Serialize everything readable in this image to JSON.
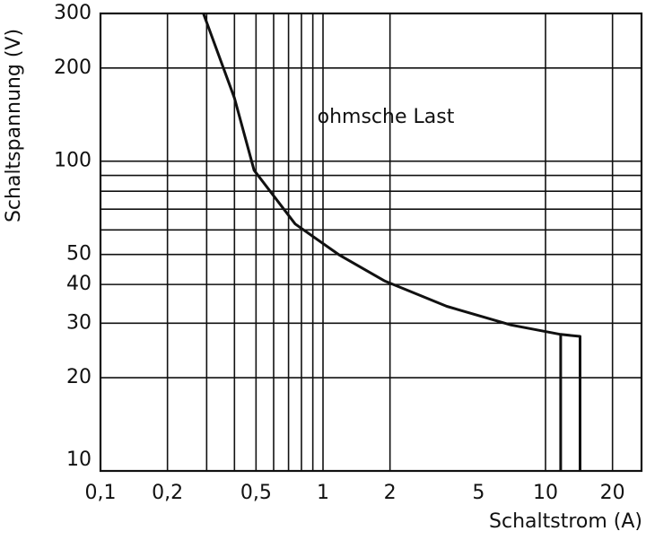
{
  "chart_data": {
    "type": "line",
    "x_label": "Schaltstrom (A)",
    "y_label": "Schaltspannung (V)",
    "annotation": "ohmsche Last",
    "xscale": "log",
    "yscale": "log",
    "xlim": [
      0.1,
      27
    ],
    "ylim": [
      10,
      300
    ],
    "xticks": [
      {
        "value": 0.1,
        "label": "0,1"
      },
      {
        "value": 0.2,
        "label": "0,2"
      },
      {
        "value": 0.5,
        "label": "0,5"
      },
      1,
      2,
      5,
      10,
      20
    ],
    "yticks": [
      10,
      20,
      30,
      40,
      50,
      100,
      200,
      300
    ],
    "xgrid": [
      0.2,
      0.3,
      0.4,
      0.5,
      0.6,
      0.7,
      0.8,
      0.9,
      1,
      2,
      10,
      20
    ],
    "ygrid": [
      20,
      30,
      40,
      50,
      60,
      70,
      80,
      90,
      100,
      200
    ],
    "color": "#111111",
    "series": [
      {
        "x": [
          0.29,
          0.4,
          0.49,
          0.75,
          1.19,
          1.9,
          3.6,
          7.0,
          11.7,
          14.3,
          14.3
        ],
        "values": [
          300,
          160,
          93.5,
          62.7,
          49.7,
          41,
          34,
          29.6,
          27.6,
          27.2,
          10
        ]
      },
      {
        "x": [
          11.7,
          11.7
        ],
        "values": [
          27.6,
          10
        ]
      }
    ]
  }
}
